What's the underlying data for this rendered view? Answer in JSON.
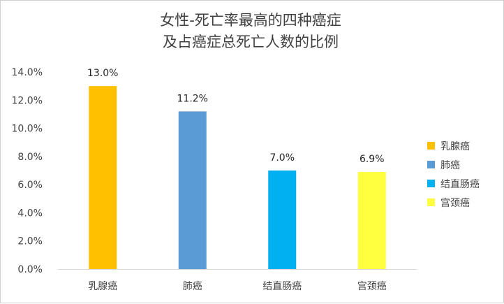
{
  "chart_data": {
    "type": "bar",
    "title_lines": [
      "女性-死亡率最高的四种癌症",
      "及占癌症总死亡人数的比例"
    ],
    "categories": [
      "乳腺癌",
      "肺癌",
      "结直肠癌",
      "宫颈癌"
    ],
    "values": [
      13.0,
      11.2,
      7.0,
      6.9
    ],
    "data_labels": [
      "13.0%",
      "11.2%",
      "7.0%",
      "6.9%"
    ],
    "colors": [
      "#FFC000",
      "#5B9BD5",
      "#00B0F0",
      "#FFFF3F"
    ],
    "legend": {
      "position": "right",
      "items": [
        "乳腺癌",
        "肺癌",
        "结直肠癌",
        "宫颈癌"
      ]
    },
    "ylim": [
      0,
      14
    ],
    "y_ticks": [
      0,
      2,
      4,
      6,
      8,
      10,
      12,
      14
    ],
    "y_tick_labels": [
      "0.0%",
      "2.0%",
      "4.0%",
      "6.0%",
      "8.0%",
      "10.0%",
      "12.0%",
      "14.0%"
    ],
    "grid": false,
    "xlabel": "",
    "ylabel": ""
  }
}
